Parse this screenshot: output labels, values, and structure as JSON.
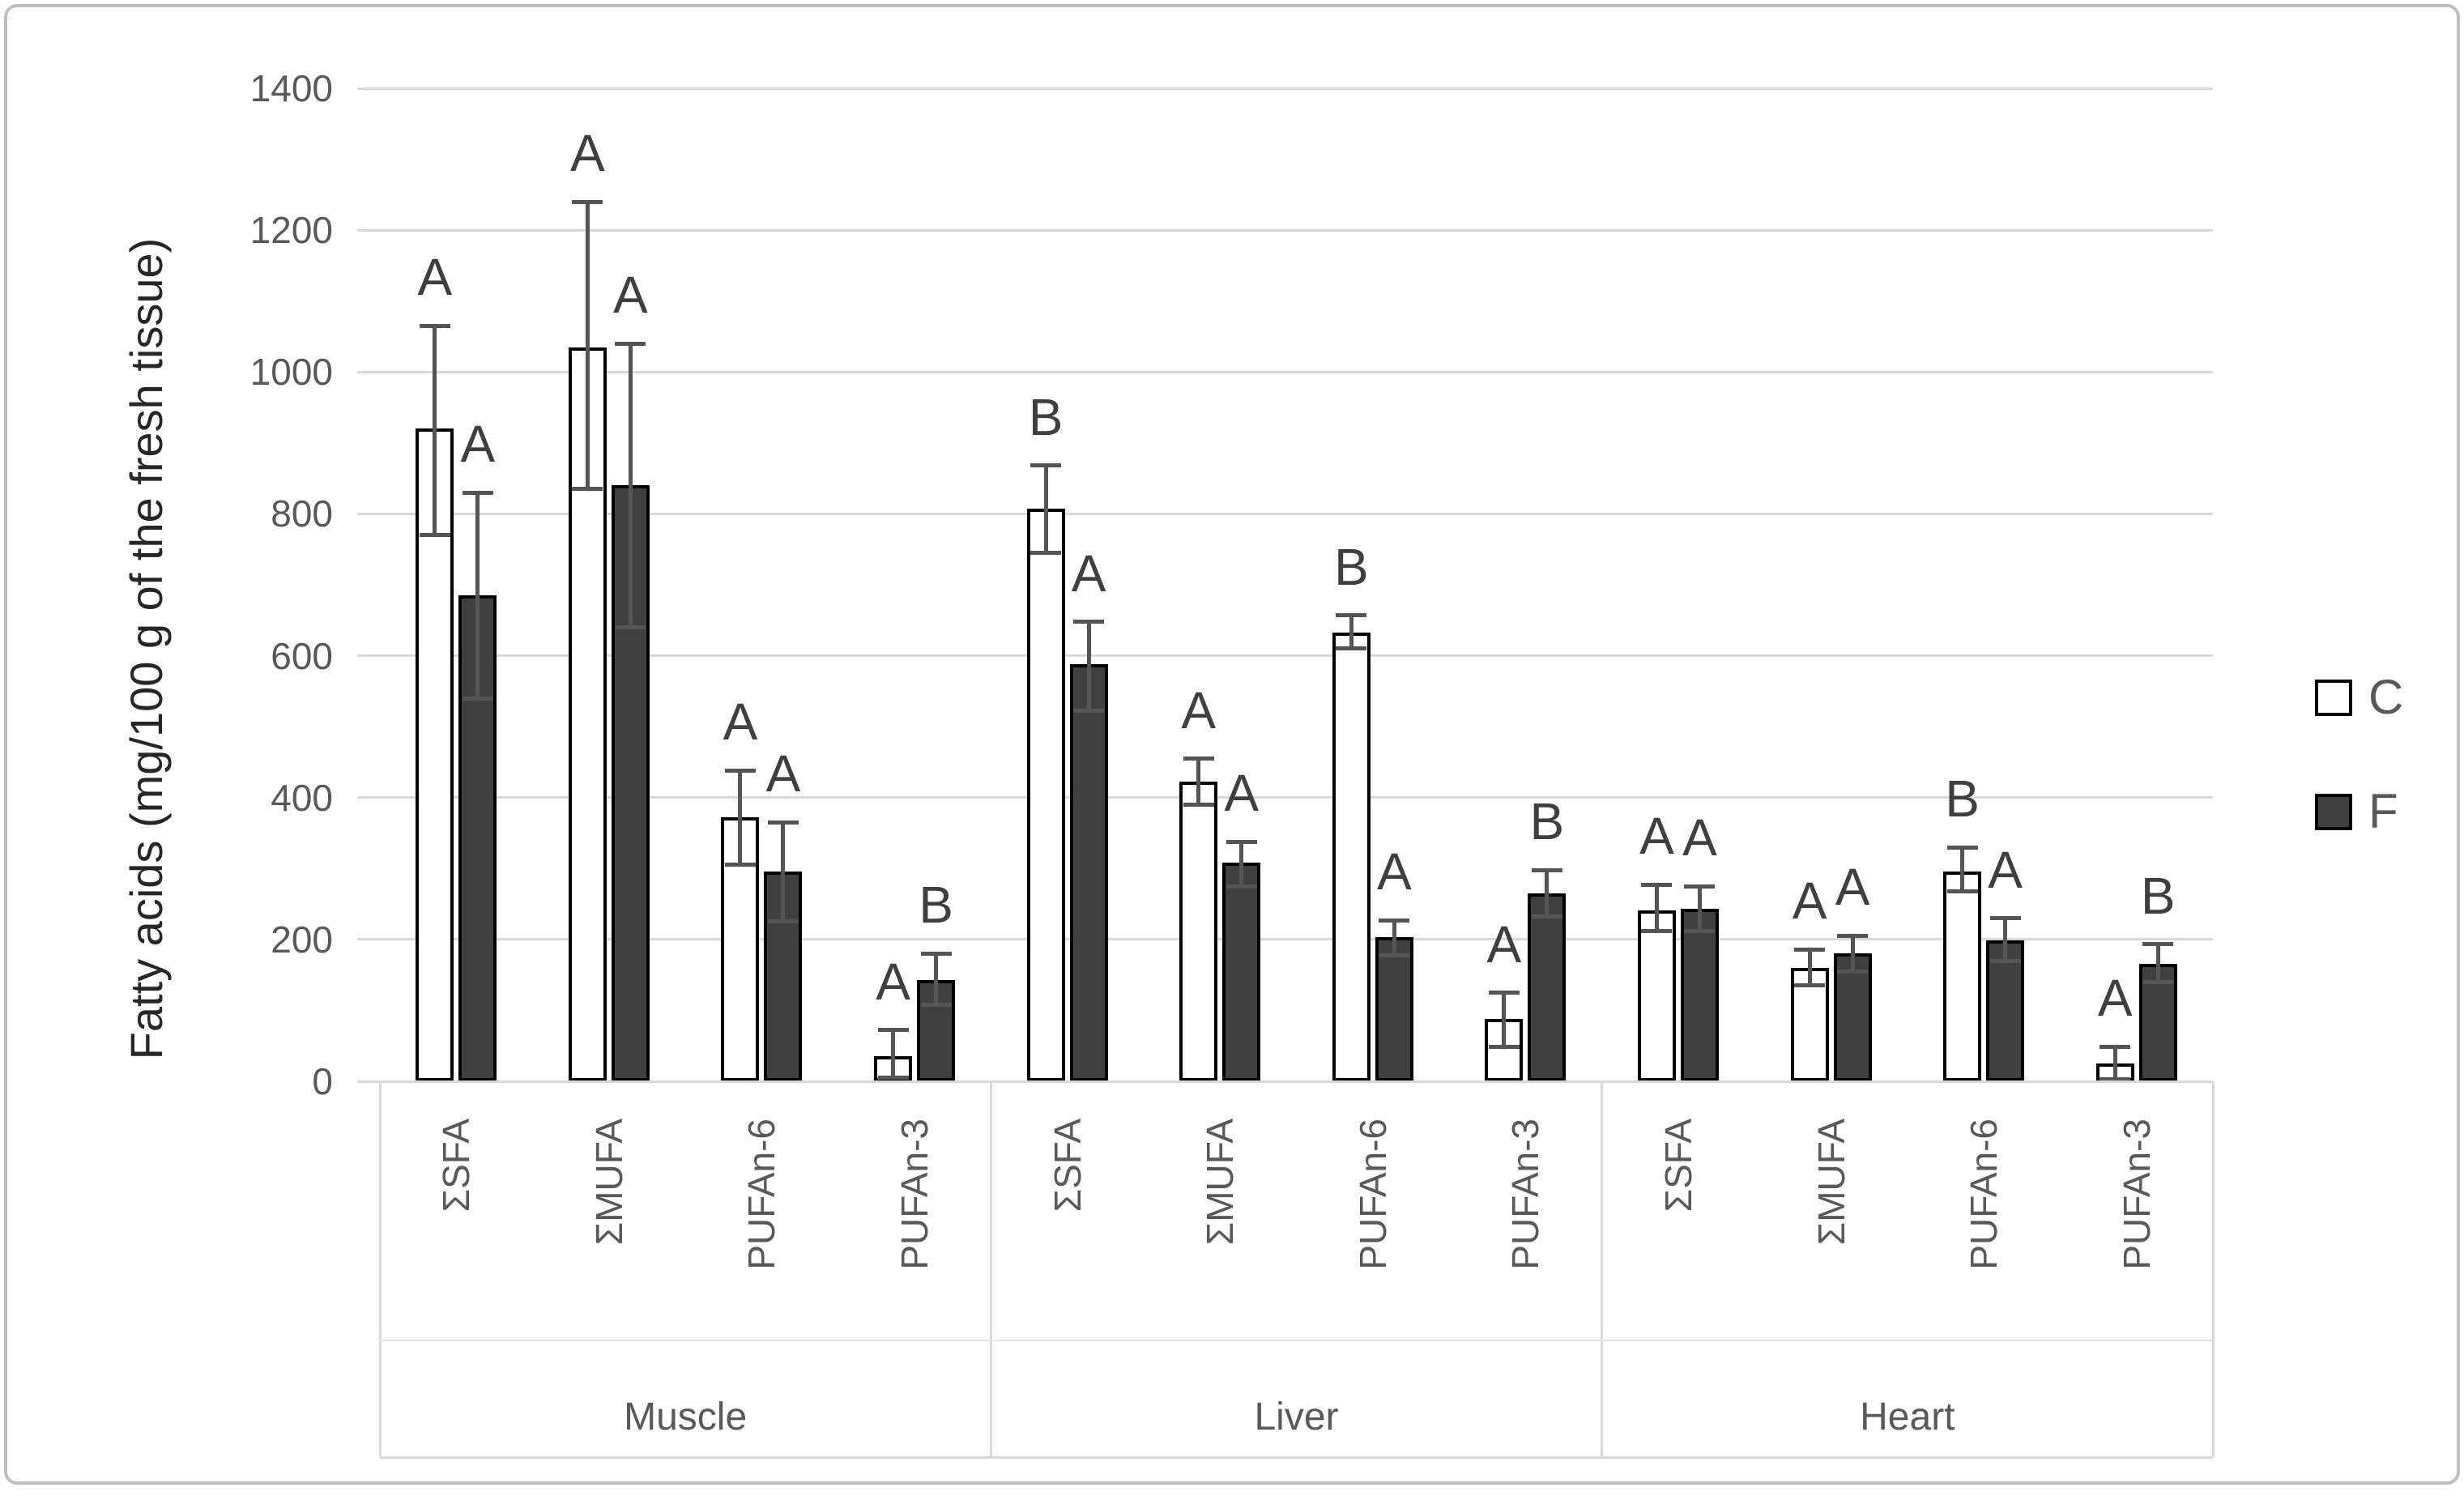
{
  "chart_data": {
    "type": "bar",
    "title": "",
    "ylabel": "Fatty acids (mg/100 g of the fresh tissue)",
    "ylim": [
      0,
      1400
    ],
    "yticks": [
      0,
      200,
      400,
      600,
      800,
      1000,
      1200,
      1400
    ],
    "grid": true,
    "legend_position": "right",
    "groups": [
      "Muscle",
      "Liver",
      "Heart"
    ],
    "categories": [
      "ΣSFA",
      "ΣMUFA",
      "PUFAn-6",
      "PUFAn-3"
    ],
    "series": [
      {
        "name": "C",
        "fill": "#FFFFFF",
        "values": [
          920,
          1035,
          372,
          35,
          807,
          422,
          633,
          88,
          241,
          160,
          296,
          25
        ],
        "err_lo": [
          770,
          835,
          305,
          5,
          745,
          390,
          610,
          48,
          212,
          135,
          268,
          3
        ],
        "err_hi": [
          1065,
          1240,
          438,
          72,
          868,
          455,
          657,
          125,
          277,
          186,
          330,
          49
        ],
        "letters": [
          "A",
          "A",
          "A",
          "A",
          "B",
          "A",
          "B",
          "A",
          "A",
          "A",
          "B",
          "A"
        ]
      },
      {
        "name": "F",
        "fill": "#404040",
        "values": [
          685,
          840,
          296,
          143,
          588,
          308,
          203,
          265,
          243,
          180,
          199,
          166
        ],
        "err_lo": [
          540,
          640,
          225,
          108,
          523,
          275,
          178,
          232,
          212,
          155,
          170,
          140
        ],
        "err_hi": [
          830,
          1040,
          365,
          180,
          648,
          338,
          227,
          298,
          275,
          205,
          230,
          193
        ],
        "letters": [
          "A",
          "A",
          "A",
          "B",
          "A",
          "A",
          "A",
          "B",
          "A",
          "A",
          "A",
          "B"
        ]
      }
    ]
  },
  "colors": {
    "bar_border": "#000000",
    "error_bar": "#555555",
    "gridline": "#D9D9D9",
    "letter_text": "#3F3F3F",
    "axis_text": "#595959",
    "axis_title_text": "#262626",
    "frame_border": "#BFBFBF"
  },
  "legend": {
    "items": [
      {
        "label": "C",
        "swatch": "white-square-icon"
      },
      {
        "label": "F",
        "swatch": "dark-square-icon"
      }
    ]
  }
}
